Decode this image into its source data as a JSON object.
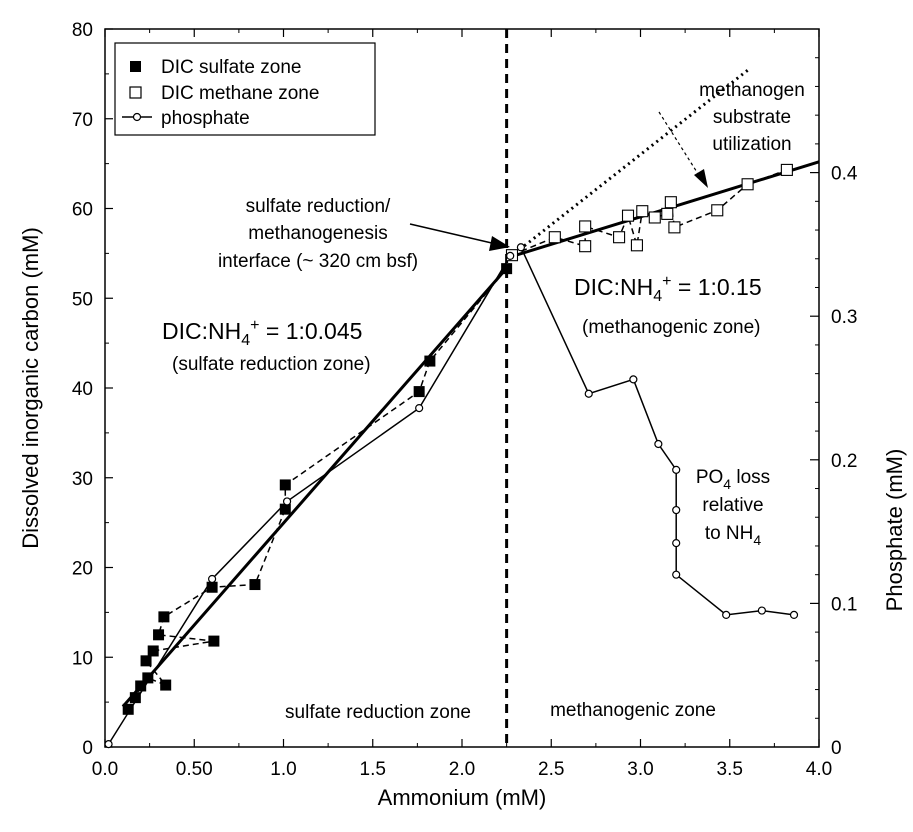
{
  "chart_data": {
    "type": "scatter",
    "title": "",
    "xlabel": "Ammonium (mM)",
    "ylabel": "Dissolved inorganic carbon (mM)",
    "y2label": "Phosphate (mM)",
    "xlim": [
      0,
      4.0
    ],
    "ylim": [
      0,
      80
    ],
    "y2lim": [
      0,
      0.5
    ],
    "grid": false,
    "legend_position": "top-left",
    "x_ticks": [
      {
        "value": 0.0,
        "label": "0.0"
      },
      {
        "value": 0.5,
        "label": "0.50"
      },
      {
        "value": 1.0,
        "label": "1.0"
      },
      {
        "value": 1.5,
        "label": "1.5"
      },
      {
        "value": 2.0,
        "label": "2.0"
      },
      {
        "value": 2.5,
        "label": "2.5"
      },
      {
        "value": 3.0,
        "label": "3.0"
      },
      {
        "value": 3.5,
        "label": "3.5"
      },
      {
        "value": 4.0,
        "label": "4.0"
      }
    ],
    "y_ticks": [
      {
        "value": 0,
        "label": "0"
      },
      {
        "value": 10,
        "label": "10"
      },
      {
        "value": 20,
        "label": "20"
      },
      {
        "value": 30,
        "label": "30"
      },
      {
        "value": 40,
        "label": "40"
      },
      {
        "value": 50,
        "label": "50"
      },
      {
        "value": 60,
        "label": "60"
      },
      {
        "value": 70,
        "label": "70"
      },
      {
        "value": 80,
        "label": "80"
      }
    ],
    "y2_ticks": [
      {
        "value": 0,
        "label": "0"
      },
      {
        "value": 0.1,
        "label": "0.1"
      },
      {
        "value": 0.2,
        "label": "0.2"
      },
      {
        "value": 0.3,
        "label": "0.3"
      },
      {
        "value": 0.4,
        "label": "0.4"
      }
    ],
    "series": [
      {
        "name": "DIC sulfate zone",
        "marker": "filled-square",
        "line": "dashed",
        "points": [
          {
            "x": 0.13,
            "y": 4.2
          },
          {
            "x": 0.17,
            "y": 5.5
          },
          {
            "x": 0.2,
            "y": 6.8
          },
          {
            "x": 0.24,
            "y": 7.7
          },
          {
            "x": 0.34,
            "y": 6.9
          },
          {
            "x": 0.23,
            "y": 9.6
          },
          {
            "x": 0.27,
            "y": 10.7
          },
          {
            "x": 0.61,
            "y": 11.8
          },
          {
            "x": 0.3,
            "y": 12.5
          },
          {
            "x": 0.33,
            "y": 14.5
          },
          {
            "x": 0.6,
            "y": 17.8
          },
          {
            "x": 0.84,
            "y": 18.1
          },
          {
            "x": 1.01,
            "y": 26.5
          },
          {
            "x": 1.01,
            "y": 29.2
          },
          {
            "x": 1.76,
            "y": 39.6
          },
          {
            "x": 1.82,
            "y": 43.0
          },
          {
            "x": 2.25,
            "y": 53.3
          }
        ]
      },
      {
        "name": "DIC methane zone",
        "marker": "open-square",
        "line": "dashed",
        "points": [
          {
            "x": 2.28,
            "y": 54.8
          },
          {
            "x": 2.52,
            "y": 56.8
          },
          {
            "x": 2.69,
            "y": 55.8
          },
          {
            "x": 2.69,
            "y": 58.0
          },
          {
            "x": 2.88,
            "y": 56.8
          },
          {
            "x": 2.93,
            "y": 59.2
          },
          {
            "x": 2.98,
            "y": 55.9
          },
          {
            "x": 3.01,
            "y": 59.7
          },
          {
            "x": 3.08,
            "y": 59.0
          },
          {
            "x": 3.15,
            "y": 59.4
          },
          {
            "x": 3.17,
            "y": 60.7
          },
          {
            "x": 3.19,
            "y": 57.9
          },
          {
            "x": 3.43,
            "y": 59.8
          },
          {
            "x": 3.6,
            "y": 62.7
          },
          {
            "x": 3.82,
            "y": 64.3
          }
        ]
      },
      {
        "name": "phosphate",
        "axis": "right",
        "marker": "open-circle",
        "line": "solid",
        "points": [
          {
            "x": 0.02,
            "y": 0.002
          },
          {
            "x": 0.6,
            "y": 0.117
          },
          {
            "x": 1.02,
            "y": 0.171
          },
          {
            "x": 1.76,
            "y": 0.236
          },
          {
            "x": 2.27,
            "y": 0.342
          },
          {
            "x": 2.33,
            "y": 0.348
          },
          {
            "x": 2.71,
            "y": 0.246
          },
          {
            "x": 2.96,
            "y": 0.256
          },
          {
            "x": 3.1,
            "y": 0.211
          },
          {
            "x": 3.2,
            "y": 0.193
          },
          {
            "x": 3.2,
            "y": 0.165
          },
          {
            "x": 3.2,
            "y": 0.142
          },
          {
            "x": 3.2,
            "y": 0.12
          },
          {
            "x": 3.48,
            "y": 0.092
          },
          {
            "x": 3.68,
            "y": 0.095
          },
          {
            "x": 3.86,
            "y": 0.092
          }
        ]
      }
    ],
    "regression_lines": [
      {
        "role": "sulfate-zone-fit",
        "style": "solid-thick",
        "x": [
          0.1,
          2.27
        ],
        "y": [
          4.5,
          53.8
        ]
      },
      {
        "role": "methanogenic-zone-fit",
        "style": "solid-thick",
        "x": [
          2.27,
          4.0
        ],
        "y": [
          54.6,
          65.2
        ]
      },
      {
        "role": "methanogen-substrate-utilization",
        "style": "dotted",
        "x": [
          2.27,
          3.6
        ],
        "y": [
          54.6,
          75.4
        ]
      }
    ],
    "boundary": {
      "x": 2.25,
      "style": "dashed"
    },
    "annotations": {
      "interface_line1": "sulfate reduction/",
      "interface_line2": "methanogenesis",
      "interface_line3": "interface (~ 320 cm bsf)",
      "left_ratio_prefix": "DIC:NH",
      "left_ratio_sub": "4",
      "left_ratio_sup": "+",
      "left_ratio_value": " =  1:0.045",
      "left_zone": "(sulfate reduction zone)",
      "right_ratio_prefix": "DIC:NH",
      "right_ratio_sub": "4",
      "right_ratio_sup": "+",
      "right_ratio_value": " = 1:0.15",
      "right_zone": "(methanogenic zone)",
      "methanogen_line1": "methanogen",
      "methanogen_line2": "substrate",
      "methanogen_line3": "utilization",
      "po4_line1_prefix": "PO",
      "po4_line1_sub": "4",
      "po4_line1_suffix": " loss",
      "po4_line2": "relative",
      "po4_line3_prefix": "to NH",
      "po4_line3_sub": "4",
      "zone_left_label": "sulfate reduction zone",
      "zone_right_label": "methanogenic zone"
    }
  }
}
